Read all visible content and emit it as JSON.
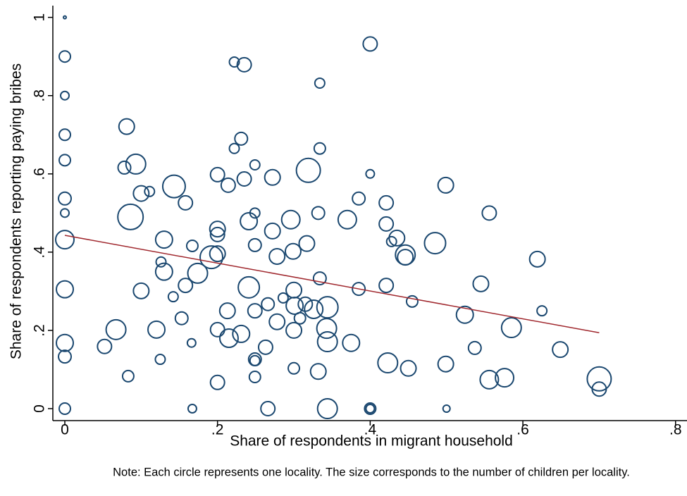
{
  "chart_data": {
    "type": "bubble",
    "x_label": "Share of respondents in migrant household",
    "y_label": "Share of respondents reporting paying bribes",
    "note": "Note: Each circle represents one locality. The size corresponds to the number of children per locality.",
    "xlim": [
      -0.0157,
      0.815
    ],
    "ylim": [
      -0.0306,
      1.03
    ],
    "xticks": [
      0,
      {
        "value": 0.2,
        "label": ".2"
      },
      {
        "value": 0.4,
        "label": ".4"
      },
      {
        "value": 0.6,
        "label": ".6"
      },
      {
        "value": 0.8,
        "label": ".8"
      }
    ],
    "yticks": [
      0,
      {
        "value": 0.2,
        "label": ".2"
      },
      {
        "value": 0.4,
        "label": ".4"
      },
      {
        "value": 0.6,
        "label": ".6"
      },
      {
        "value": 0.8,
        "label": ".8"
      },
      1
    ],
    "color": "#1a476f",
    "x": [
      0,
      0,
      0,
      0,
      0,
      0,
      0,
      0,
      0,
      0,
      0,
      0,
      0.081,
      0.078,
      0.093,
      0.086,
      0.1,
      0.111,
      0.143,
      0.158,
      0.13,
      0.167,
      0.126,
      0.13,
      0.1,
      0.142,
      0.158,
      0.174,
      0.153,
      0.067,
      0.12,
      0.052,
      0.125,
      0.166,
      0.083,
      0.167,
      0.192,
      0.2,
      0.2,
      0.2,
      0.2,
      0.214,
      0.222,
      0.235,
      0.231,
      0.222,
      0.249,
      0.235,
      0.272,
      0.249,
      0.241,
      0.272,
      0.296,
      0.249,
      0.278,
      0.299,
      0.317,
      0.319,
      0.334,
      0.334,
      0.332,
      0.37,
      0.385,
      0.4,
      0.4,
      0.421,
      0.421,
      0.435,
      0.428,
      0.446,
      0.446,
      0.485,
      0.499,
      0.556,
      0.619,
      0.241,
      0.213,
      0.334,
      0.3,
      0.301,
      0.315,
      0.326,
      0.344,
      0.286,
      0.266,
      0.249,
      0.385,
      0.421,
      0.455,
      0.545,
      0.524,
      0.625,
      0.585,
      0.2,
      0.215,
      0.231,
      0.278,
      0.308,
      0.3,
      0.343,
      0.344,
      0.375,
      0.263,
      0.249,
      0.249,
      0.249,
      0.3,
      0.332,
      0.2,
      0.266,
      0.344,
      0.4,
      0.4,
      0.5,
      0.423,
      0.45,
      0.499,
      0.537,
      0.556,
      0.576,
      0.649,
      0.7,
      0.7
    ],
    "values": [
      1.0,
      0.9,
      0.8,
      0.7,
      0.635,
      0.537,
      0.5,
      0.432,
      0.305,
      0.168,
      0.133,
      0,
      0.721,
      0.616,
      0.625,
      0.49,
      0.55,
      0.555,
      0.568,
      0.526,
      0.432,
      0.416,
      0.375,
      0.35,
      0.301,
      0.286,
      0.315,
      0.346,
      0.231,
      0.202,
      0.202,
      0.159,
      0.126,
      0.168,
      0.083,
      0,
      0.387,
      0.396,
      0.459,
      0.445,
      0.598,
      0.571,
      0.886,
      0.879,
      0.69,
      0.665,
      0.623,
      0.587,
      0.591,
      0.5,
      0.479,
      0.454,
      0.483,
      0.418,
      0.389,
      0.402,
      0.422,
      0.609,
      0.665,
      0.832,
      0.5,
      0.483,
      0.537,
      0.932,
      0.6,
      0.526,
      0.472,
      0.436,
      0.427,
      0.393,
      0.387,
      0.423,
      0.571,
      0.5,
      0.382,
      0.31,
      0.25,
      0.333,
      0.303,
      0.263,
      0.267,
      0.254,
      0.259,
      0.283,
      0.267,
      0.25,
      0.306,
      0.315,
      0.274,
      0.319,
      0.24,
      0.25,
      0.207,
      0.202,
      0.18,
      0.191,
      0.222,
      0.231,
      0.2,
      0.205,
      0.171,
      0.168,
      0.157,
      0.126,
      0.123,
      0.081,
      0.103,
      0.095,
      0.067,
      0,
      0,
      0,
      0,
      0,
      0.117,
      0.103,
      0.114,
      0.155,
      0.074,
      0.079,
      0.151,
      0.076,
      0.05
    ],
    "sizes": [
      4,
      64,
      36,
      64,
      64,
      81,
      36,
      169,
      144,
      144,
      81,
      64,
      121,
      81,
      196,
      324,
      121,
      49,
      256,
      100,
      144,
      64,
      49,
      144,
      121,
      49,
      100,
      196,
      81,
      196,
      144,
      100,
      49,
      36,
      64,
      36,
      256,
      121,
      121,
      100,
      100,
      100,
      49,
      100,
      81,
      49,
      49,
      100,
      121,
      49,
      144,
      121,
      169,
      81,
      121,
      121,
      121,
      289,
      64,
      49,
      81,
      169,
      81,
      100,
      36,
      100,
      100,
      121,
      49,
      196,
      121,
      225,
      121,
      100,
      121,
      225,
      121,
      81,
      121,
      144,
      100,
      169,
      225,
      49,
      81,
      100,
      81,
      100,
      64,
      121,
      144,
      49,
      196,
      100,
      169,
      144,
      121,
      64,
      121,
      196,
      196,
      144,
      100,
      81,
      49,
      64,
      64,
      121,
      100,
      100,
      196,
      64,
      36,
      25,
      196,
      121,
      121,
      81,
      169,
      169,
      121,
      289,
      100
    ],
    "fit_line": {
      "color": "#a0282e",
      "x": [
        0,
        0.7
      ],
      "values": [
        0.443,
        0.194
      ]
    }
  }
}
